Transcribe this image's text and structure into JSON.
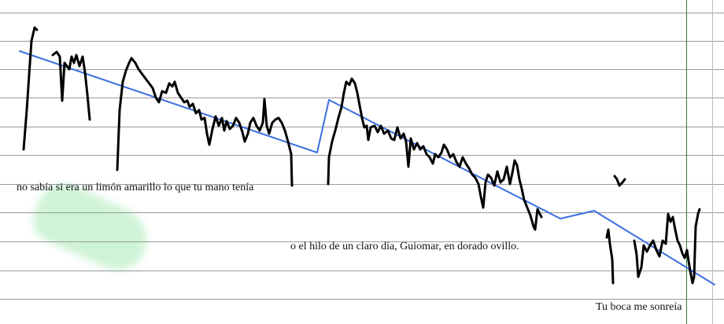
{
  "captions": {
    "line1": "no sabía si era un limón amarillo lo que tu mano tenía",
    "line2": "o el hilo de un claro día, Guiomar, en dorado ovillo.",
    "line3": "Tu boca me sonreía"
  },
  "colors": {
    "background": "#ffffff",
    "ruled_line": "#9a9a9a",
    "margin_line": "#2e7d32",
    "ink_stroke": "#000000",
    "guide_stroke": "#3b6fe0",
    "highlight_blob": "#c6f1cf"
  }
}
